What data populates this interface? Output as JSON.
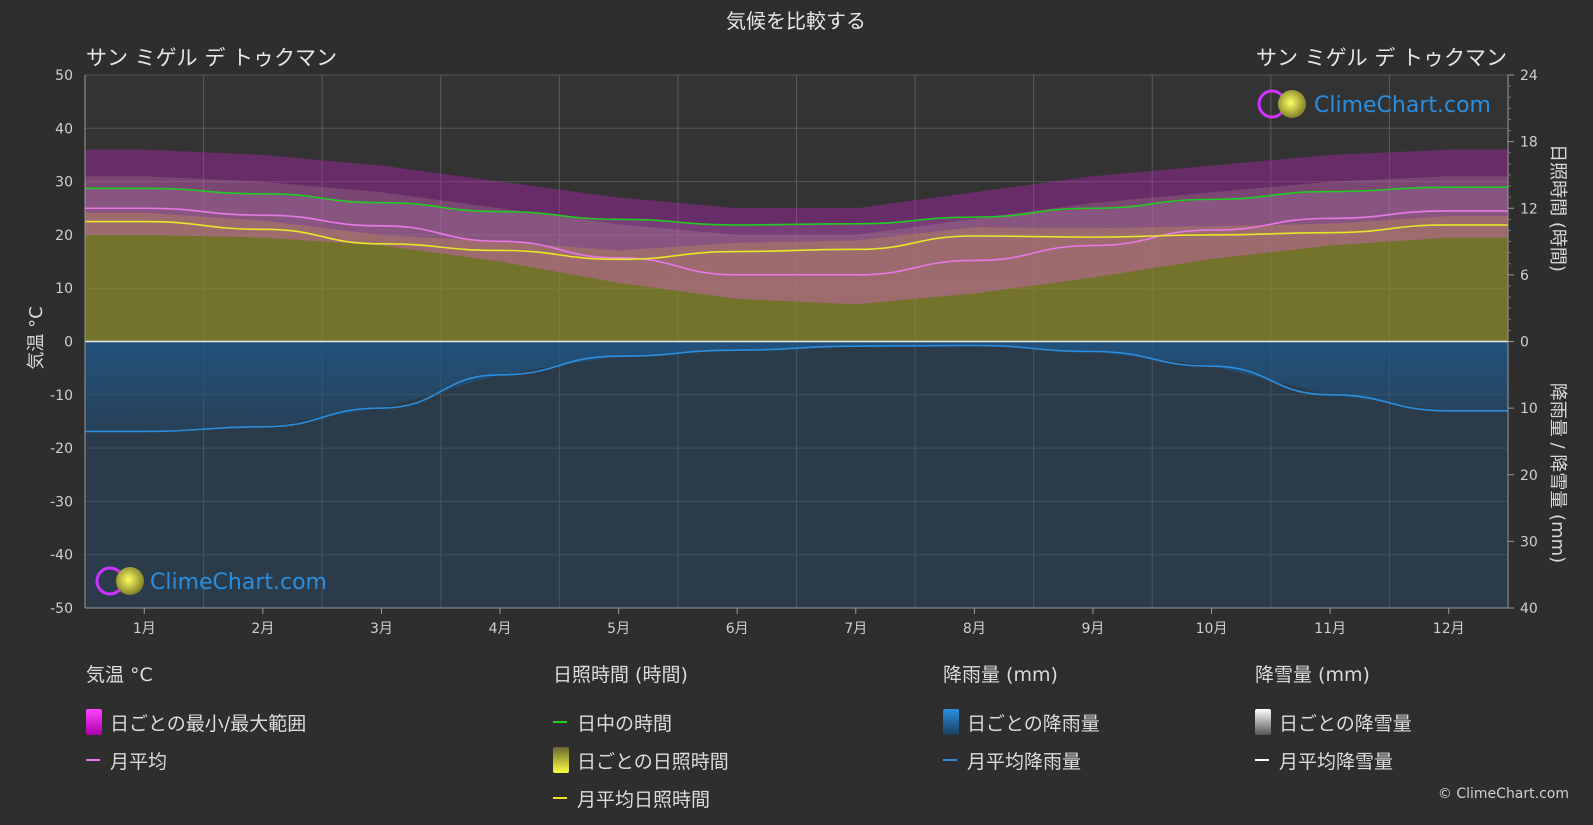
{
  "chart_data": {
    "type": "line",
    "title": "気候を比較する",
    "location_left": "サン ミゲル デ トゥクマン",
    "location_right": "サン ミゲル デ トゥクマン",
    "months": [
      "1月",
      "2月",
      "3月",
      "4月",
      "5月",
      "6月",
      "7月",
      "8月",
      "9月",
      "10月",
      "11月",
      "12月"
    ],
    "y_left": {
      "label": "気温 °C",
      "range": [
        -50,
        50
      ],
      "ticks": [
        "50",
        "40",
        "30",
        "20",
        "10",
        "0",
        "-10",
        "-20",
        "-30",
        "-40",
        "-50"
      ]
    },
    "y_right_top": {
      "label": "日照時間 (時間)",
      "range": [
        0,
        24
      ],
      "ticks": [
        "24",
        "18",
        "12",
        "6",
        "0"
      ]
    },
    "y_right_bottom": {
      "label": "降雨量 / 降雪量 (mm)",
      "range": [
        0,
        40
      ],
      "ticks": [
        "0",
        "10",
        "20",
        "30",
        "40"
      ]
    },
    "series": [
      {
        "name": "日中の時間",
        "unit": "h",
        "color": "#22cc22",
        "values": [
          13.8,
          13.3,
          12.5,
          11.7,
          11.0,
          10.5,
          10.6,
          11.2,
          12.0,
          12.8,
          13.5,
          13.9
        ]
      },
      {
        "name": "月平均日照時間",
        "unit": "h",
        "color": "#e6e62a",
        "values": [
          10.8,
          10.1,
          8.8,
          8.2,
          7.4,
          8.1,
          8.3,
          9.5,
          9.4,
          9.6,
          9.8,
          10.5
        ]
      },
      {
        "name": "月平均",
        "unit": "°C",
        "color": "#e878e8",
        "values": [
          25.0,
          23.7,
          21.7,
          18.8,
          15.7,
          12.5,
          12.5,
          15.2,
          18.0,
          20.9,
          23.1,
          24.5
        ]
      },
      {
        "name": "月平均降雨量",
        "unit": "mm",
        "color": "#2a8ee0",
        "values": [
          13.5,
          12.8,
          10.0,
          5.0,
          2.2,
          1.3,
          0.7,
          0.6,
          1.5,
          3.7,
          8.0,
          10.4
        ]
      }
    ],
    "daily_temp_range": {
      "min": [
        20,
        19.5,
        18,
        15,
        11,
        8,
        7,
        9,
        12,
        15.5,
        18,
        19.5
      ],
      "max": [
        31,
        30,
        28,
        25,
        22,
        20,
        20,
        23,
        26,
        28,
        30,
        31
      ]
    }
  },
  "legend": {
    "temp": {
      "header": "気温 °C",
      "items": [
        {
          "label": "日ごとの最小/最大範囲",
          "color": "#ff33ff"
        },
        {
          "label": "月平均",
          "color": "#e878e8"
        }
      ]
    },
    "sun": {
      "header": "日照時間 (時間)",
      "items": [
        {
          "label": "日中の時間",
          "color": "#22cc22"
        },
        {
          "label": "日ごとの日照時間",
          "color": "#e6e62a"
        },
        {
          "label": "月平均日照時間",
          "color": "#e6e62a"
        }
      ]
    },
    "rain": {
      "header": "降雨量 (mm)",
      "items": [
        {
          "label": "日ごとの降雨量",
          "color": "#2a8ee0"
        },
        {
          "label": "月平均降雨量",
          "color": "#2a8ee0"
        }
      ]
    },
    "snow": {
      "header": "降雪量 (mm)",
      "items": [
        {
          "label": "日ごとの降雪量",
          "color": "#ffffff"
        },
        {
          "label": "月平均降雪量",
          "color": "#ffffff"
        }
      ]
    }
  },
  "brand": {
    "logo_text": "ClimeChart.com",
    "copyright": "© ClimeChart.com"
  }
}
